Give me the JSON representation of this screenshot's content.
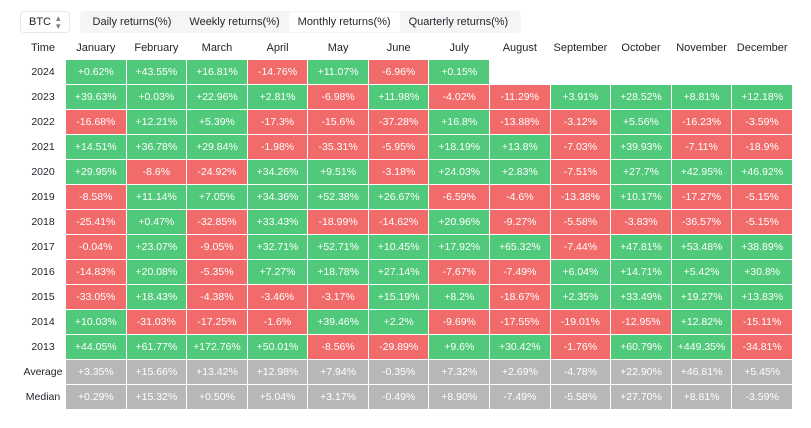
{
  "asset_selector": {
    "value": "BTC",
    "icon": "sort-caret-icon"
  },
  "tabs": [
    {
      "label": "Daily returns(%)",
      "active": false
    },
    {
      "label": "Weekly returns(%)",
      "active": false
    },
    {
      "label": "Monthly returns(%)",
      "active": true
    },
    {
      "label": "Quarterly returns(%)",
      "active": false
    }
  ],
  "colors": {
    "positive": "#50c97a",
    "negative": "#f26b6b",
    "summary": "#b7b7b7"
  },
  "table": {
    "time_header": "Time",
    "months": [
      "January",
      "February",
      "March",
      "April",
      "May",
      "June",
      "July",
      "August",
      "September",
      "October",
      "November",
      "December"
    ],
    "rows": [
      {
        "year": "2024",
        "values": [
          "+0.62%",
          "+43.55%",
          "+16.81%",
          "-14.76%",
          "+11.07%",
          "-6.96%",
          "+0.15%",
          "",
          "",
          "",
          "",
          ""
        ]
      },
      {
        "year": "2023",
        "values": [
          "+39.63%",
          "+0.03%",
          "+22.96%",
          "+2.81%",
          "-6.98%",
          "+11.98%",
          "-4.02%",
          "-11.29%",
          "+3.91%",
          "+28.52%",
          "+8.81%",
          "+12.18%"
        ]
      },
      {
        "year": "2022",
        "values": [
          "-16.68%",
          "+12.21%",
          "+5.39%",
          "-17.3%",
          "-15.6%",
          "-37.28%",
          "+16.8%",
          "-13.88%",
          "-3.12%",
          "+5.56%",
          "-16.23%",
          "-3.59%"
        ]
      },
      {
        "year": "2021",
        "values": [
          "+14.51%",
          "+36.78%",
          "+29.84%",
          "-1.98%",
          "-35.31%",
          "-5.95%",
          "+18.19%",
          "+13.8%",
          "-7.03%",
          "+39.93%",
          "-7.11%",
          "-18.9%"
        ]
      },
      {
        "year": "2020",
        "values": [
          "+29.95%",
          "-8.6%",
          "-24.92%",
          "+34.26%",
          "+9.51%",
          "-3.18%",
          "+24.03%",
          "+2.83%",
          "-7.51%",
          "+27.7%",
          "+42.95%",
          "+46.92%"
        ]
      },
      {
        "year": "2019",
        "values": [
          "-8.58%",
          "+11.14%",
          "+7.05%",
          "+34.36%",
          "+52.38%",
          "+26.67%",
          "-6.59%",
          "-4.6%",
          "-13.38%",
          "+10.17%",
          "-17.27%",
          "-5.15%"
        ]
      },
      {
        "year": "2018",
        "values": [
          "-25.41%",
          "+0.47%",
          "-32.85%",
          "+33.43%",
          "-18.99%",
          "-14.62%",
          "+20.96%",
          "-9.27%",
          "-5.58%",
          "-3.83%",
          "-36.57%",
          "-5.15%"
        ]
      },
      {
        "year": "2017",
        "values": [
          "-0.04%",
          "+23.07%",
          "-9.05%",
          "+32.71%",
          "+52.71%",
          "+10.45%",
          "+17.92%",
          "+65.32%",
          "-7.44%",
          "+47.81%",
          "+53.48%",
          "+38.89%"
        ]
      },
      {
        "year": "2016",
        "values": [
          "-14.83%",
          "+20.08%",
          "-5.35%",
          "+7.27%",
          "+18.78%",
          "+27.14%",
          "-7.67%",
          "-7.49%",
          "+6.04%",
          "+14.71%",
          "+5.42%",
          "+30.8%"
        ]
      },
      {
        "year": "2015",
        "values": [
          "-33.05%",
          "+18.43%",
          "-4.38%",
          "-3.46%",
          "-3.17%",
          "+15.19%",
          "+8.2%",
          "-18.67%",
          "+2.35%",
          "+33.49%",
          "+19.27%",
          "+13.83%"
        ]
      },
      {
        "year": "2014",
        "values": [
          "+10.03%",
          "-31.03%",
          "-17.25%",
          "-1.6%",
          "+39.46%",
          "+2.2%",
          "-9.69%",
          "-17.55%",
          "-19.01%",
          "-12.95%",
          "+12.82%",
          "-15.11%"
        ]
      },
      {
        "year": "2013",
        "values": [
          "+44.05%",
          "+61.77%",
          "+172.76%",
          "+50.01%",
          "-8.56%",
          "-29.89%",
          "+9.6%",
          "+30.42%",
          "-1.76%",
          "+60.79%",
          "+449.35%",
          "-34.81%"
        ]
      }
    ],
    "summary": [
      {
        "label": "Average",
        "values": [
          "+3.35%",
          "+15.66%",
          "+13.42%",
          "+12.98%",
          "+7.94%",
          "-0.35%",
          "+7.32%",
          "+2.69%",
          "-4.78%",
          "+22.90%",
          "+46.81%",
          "+5.45%"
        ]
      },
      {
        "label": "Median",
        "values": [
          "+0.29%",
          "+15.32%",
          "+0.50%",
          "+5.04%",
          "+3.17%",
          "-0.49%",
          "+8.90%",
          "-7.49%",
          "-5.58%",
          "+27.70%",
          "+8.81%",
          "-3.59%"
        ]
      }
    ]
  }
}
